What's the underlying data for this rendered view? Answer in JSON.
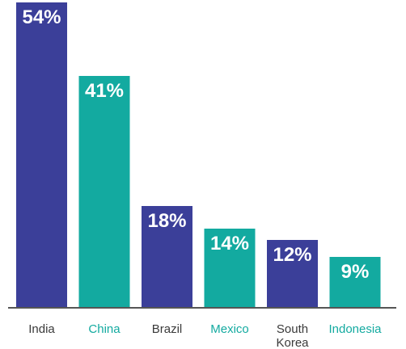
{
  "chart_data": {
    "type": "bar",
    "title": "",
    "xlabel": "",
    "ylabel": "",
    "ylim": [
      0,
      54
    ],
    "grid": false,
    "legend": "none",
    "value_format": "percent",
    "categories": [
      {
        "lines": [
          "India"
        ],
        "value": 54,
        "value_label": "54%",
        "color": "#3b3f99"
      },
      {
        "lines": [
          "China"
        ],
        "value": 41,
        "value_label": "41%",
        "color": "#13aaa0"
      },
      {
        "lines": [
          "Brazil"
        ],
        "value": 18,
        "value_label": "18%",
        "color": "#3b3f99"
      },
      {
        "lines": [
          "Mexico"
        ],
        "value": 14,
        "value_label": "14%",
        "color": "#13aaa0"
      },
      {
        "lines": [
          "South",
          "Korea"
        ],
        "value": 12,
        "value_label": "12%",
        "color": "#3b3f99"
      },
      {
        "lines": [
          "Indonesia"
        ],
        "value": 9,
        "value_label": "9%",
        "color": "#13aaa0"
      }
    ],
    "colors": {
      "dark_series": "#3b3f99",
      "teal_series": "#13aaa0",
      "dark_label": "#3a3a3a",
      "teal_label": "#13aaa0",
      "axis": "#555555"
    }
  }
}
